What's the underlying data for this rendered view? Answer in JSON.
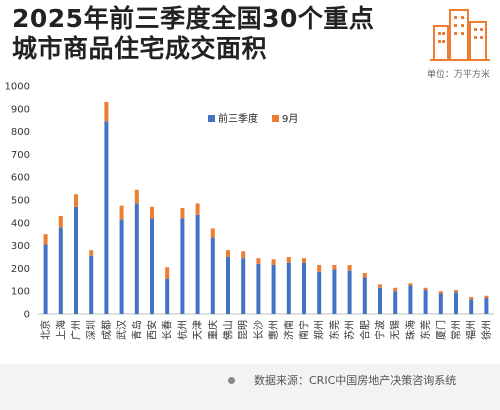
{
  "header": {
    "title_line1": "2025年前三季度全国30个重点",
    "title_line2": "城市商品住宅成交面积",
    "unit": "单位：万平方米"
  },
  "footer": {
    "source": "数据来源：CRIC中国房地产决策咨询系统"
  },
  "colors": {
    "q1_q3": "#4472c4",
    "sep": "#ed7d31",
    "logo": "#ed7d31"
  },
  "chart_data": {
    "type": "bar",
    "stacked": true,
    "categories": [
      "北京",
      "上海",
      "广州",
      "深圳",
      "成都",
      "武汉",
      "青岛",
      "西安",
      "长春",
      "杭州",
      "天津",
      "重庆",
      "佛山",
      "昆明",
      "长沙",
      "惠州",
      "济南",
      "南宁",
      "郑州",
      "东莞",
      "苏州",
      "合肥",
      "宁波",
      "无锡",
      "珠海",
      "东莞",
      "厦门",
      "常州",
      "福州",
      "徐州"
    ],
    "series": [
      {
        "name": "前三季度",
        "color": "#4472c4",
        "values": [
          305,
          380,
          470,
          255,
          845,
          415,
          485,
          420,
          155,
          420,
          435,
          335,
          250,
          245,
          220,
          215,
          225,
          225,
          185,
          195,
          190,
          160,
          115,
          100,
          125,
          105,
          90,
          95,
          65,
          70
        ]
      },
      {
        "name": "9月",
        "color": "#ed7d31",
        "values": [
          45,
          50,
          55,
          25,
          85,
          60,
          60,
          50,
          50,
          45,
          50,
          40,
          30,
          30,
          25,
          25,
          25,
          20,
          30,
          20,
          25,
          20,
          15,
          15,
          10,
          10,
          10,
          10,
          10,
          10
        ]
      }
    ],
    "ylim": [
      0,
      1000
    ],
    "yticks": [
      0,
      100,
      200,
      300,
      400,
      500,
      600,
      700,
      800,
      900,
      1000
    ],
    "grid": false,
    "legend": "top-center"
  }
}
